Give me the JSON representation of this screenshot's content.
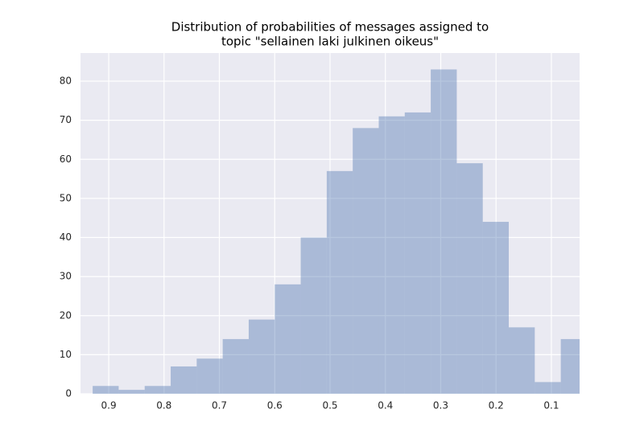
{
  "chart_data": {
    "type": "histogram",
    "title": [
      "Distribution of probabilities of messages assigned to",
      "topic \"sellainen laki julkinen oikeus\""
    ],
    "bins": [
      0.036,
      0.083,
      0.13,
      0.177,
      0.224,
      0.271,
      0.318,
      0.365,
      0.412,
      0.459,
      0.506,
      0.553,
      0.6,
      0.647,
      0.694,
      0.741,
      0.788,
      0.835,
      0.882,
      0.929
    ],
    "values": [
      14,
      3,
      17,
      44,
      59,
      83,
      72,
      71,
      68,
      57,
      40,
      28,
      19,
      14,
      9,
      7,
      2,
      1,
      2
    ],
    "color": "#4c72b0",
    "opacity": 0.4,
    "xlim": [
      0.951,
      0.049
    ],
    "xticks": [
      0.9,
      0.8,
      0.7,
      0.6,
      0.5,
      0.4,
      0.3,
      0.2,
      0.1
    ],
    "ylim": [
      0,
      87.2
    ],
    "yticks": [
      0,
      10,
      20,
      30,
      40,
      50,
      60,
      70,
      80
    ],
    "grid": true
  }
}
